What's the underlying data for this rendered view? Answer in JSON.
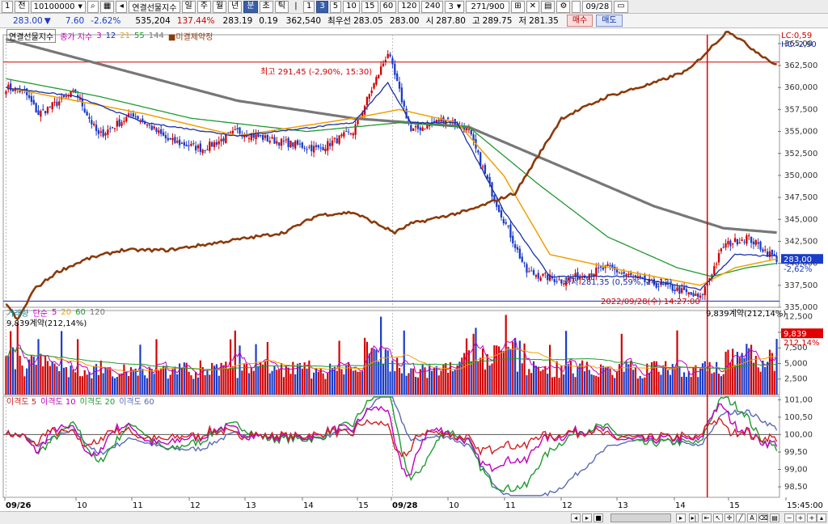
{
  "toolbar": {
    "btn1": "1",
    "btn2": "전",
    "code": "10100000",
    "index_name": "연결선물지수",
    "periods": [
      "일",
      "주",
      "월",
      "년",
      "분",
      "초",
      "틱"
    ],
    "active_period": 4,
    "minutes": [
      "1",
      "3",
      "5",
      "10",
      "15",
      "60",
      "120",
      "240"
    ],
    "active_minute": 1,
    "interval": "3",
    "count": "271/900",
    "date": "09/28"
  },
  "quote": {
    "price": "283.00",
    "arrow": "▼",
    "change": "7.60",
    "change_pct": "-2.62%",
    "volume": "535,204",
    "vol_ratio": "137.44%",
    "v1": "283.19",
    "v2": "0.19",
    "oi": "362,540",
    "bid_label": "최우선",
    "bid": "283.05",
    "ask": "283.00",
    "open_label": "시",
    "open": "287.80",
    "high_label": "고",
    "high": "289.75",
    "low_label": "저",
    "low": "281.35",
    "buy_label": "매수",
    "sell_label": "매도"
  },
  "legend_price": {
    "name": "연결선물지수",
    "ma_label": "종가 지수",
    "ma_periods": [
      "3",
      "12",
      "21",
      "55",
      "144"
    ],
    "ma_colors": [
      "#c000c0",
      "#1a2fa8",
      "#f0a000",
      "#1f9a2f",
      "#777777"
    ],
    "oi_label": "미결제약정"
  },
  "legend_volume": {
    "name": "거래량",
    "ma_label": "단순",
    "ma_periods": [
      "5",
      "20",
      "60",
      "120"
    ],
    "ma_colors": [
      "#c000c0",
      "#f0a000",
      "#1f9a2f",
      "#777777"
    ],
    "oi_value": "9,839계약(212,14%)"
  },
  "legend_disparity": {
    "items": [
      "이격도 5",
      "이격도 10",
      "이격도 20",
      "이격도 60"
    ],
    "colors": [
      "#d02020",
      "#c000c0",
      "#1f9a2f",
      "#5a6ab8"
    ]
  },
  "annotations": {
    "high": "최고 291,45 (-2,90%, 15:30)",
    "low": "최저 281,35 (0,59%, 14:12)",
    "cursor": "2022/09/28(수) 14:27:00",
    "lc": "LC:0,59",
    "hc": "HC:-2,90",
    "price_tag": "283,00",
    "price_tag_pct": "-2,62%",
    "vol_tag": "9,839",
    "vol_tag_pct": "212,14%",
    "vol_value": "9,839계약(212,14%)"
  },
  "chart_data": [
    {
      "type": "candlestick",
      "title": "연결선물지수",
      "ylim": [
        335,
        366
      ],
      "yticks": [
        "365,00",
        "362,500",
        "360,000",
        "357,500",
        "355,000",
        "352,500",
        "350,000",
        "347,500",
        "345,000",
        "342,500",
        "340,000",
        "337,500",
        "335,000"
      ],
      "ytick_values": [
        365,
        362.5,
        360,
        357.5,
        355,
        352.5,
        350,
        347.5,
        345,
        342.5,
        340,
        337.5,
        335
      ],
      "x_labels": [
        "09/26",
        "10",
        "11",
        "12",
        "13",
        "14",
        "15",
        "09/28",
        "10",
        "11",
        "12",
        "13",
        "14",
        "15",
        "15:45:00"
      ],
      "series_keypoints": {
        "price": [
          [
            0,
            360
          ],
          [
            8,
            359.5
          ],
          [
            14,
            357
          ],
          [
            30,
            359.5
          ],
          [
            40,
            354.5
          ],
          [
            55,
            357
          ],
          [
            70,
            354
          ],
          [
            85,
            353
          ],
          [
            100,
            355
          ],
          [
            115,
            354
          ],
          [
            135,
            353
          ],
          [
            150,
            355
          ],
          [
            165,
            364
          ],
          [
            175,
            355
          ],
          [
            190,
            356.5
          ],
          [
            200,
            355
          ],
          [
            210,
            348
          ],
          [
            225,
            339
          ],
          [
            240,
            338
          ],
          [
            260,
            339.5
          ],
          [
            275,
            338
          ],
          [
            290,
            337
          ],
          [
            300,
            336
          ],
          [
            310,
            342
          ],
          [
            320,
            343
          ],
          [
            333,
            340.5
          ]
        ],
        "ma12": [
          [
            0,
            360
          ],
          [
            30,
            359
          ],
          [
            60,
            356
          ],
          [
            100,
            354.5
          ],
          [
            150,
            356
          ],
          [
            165,
            360.5
          ],
          [
            175,
            356
          ],
          [
            195,
            356
          ],
          [
            215,
            346
          ],
          [
            235,
            338.5
          ],
          [
            270,
            338.5
          ],
          [
            300,
            337
          ],
          [
            315,
            341
          ],
          [
            333,
            340.8
          ]
        ],
        "ma21": [
          [
            0,
            360
          ],
          [
            30,
            358.5
          ],
          [
            60,
            357
          ],
          [
            100,
            354.5
          ],
          [
            150,
            356.5
          ],
          [
            170,
            357.5
          ],
          [
            195,
            356
          ],
          [
            215,
            350
          ],
          [
            235,
            341
          ],
          [
            270,
            339
          ],
          [
            300,
            337.5
          ],
          [
            315,
            339.5
          ],
          [
            333,
            340.5
          ]
        ],
        "ma55": [
          [
            0,
            361
          ],
          [
            40,
            359
          ],
          [
            80,
            356.5
          ],
          [
            130,
            355
          ],
          [
            170,
            356
          ],
          [
            200,
            355.5
          ],
          [
            230,
            349
          ],
          [
            260,
            343
          ],
          [
            290,
            339.5
          ],
          [
            305,
            338.5
          ],
          [
            320,
            339.5
          ],
          [
            333,
            340
          ]
        ],
        "ma144": [
          [
            0,
            365.5
          ],
          [
            50,
            362
          ],
          [
            100,
            358.5
          ],
          [
            150,
            356.5
          ],
          [
            200,
            355.5
          ],
          [
            240,
            351
          ],
          [
            280,
            346.5
          ],
          [
            310,
            344
          ],
          [
            333,
            343.5
          ]
        ],
        "open_interest": [
          [
            0,
            335.5
          ],
          [
            5,
            333.5
          ],
          [
            12,
            337
          ],
          [
            22,
            339
          ],
          [
            35,
            340.5
          ],
          [
            50,
            341.5
          ],
          [
            70,
            341.5
          ],
          [
            95,
            342.5
          ],
          [
            120,
            343.5
          ],
          [
            135,
            345.5
          ],
          [
            150,
            345.8
          ],
          [
            168,
            343.5
          ],
          [
            175,
            344.5
          ],
          [
            200,
            346
          ],
          [
            220,
            348
          ],
          [
            240,
            356.5
          ],
          [
            260,
            359
          ],
          [
            280,
            360.5
          ],
          [
            295,
            362
          ],
          [
            312,
            366.5
          ],
          [
            322,
            364.5
          ],
          [
            333,
            362.5
          ]
        ]
      }
    },
    {
      "type": "bar",
      "title": "거래량",
      "ylim": [
        0,
        13500
      ],
      "yticks": [
        "12,500",
        "10,000",
        "7,500",
        "5,000",
        "2,500"
      ],
      "ytick_values": [
        12500,
        10000,
        7500,
        5000,
        2500
      ]
    },
    {
      "type": "line",
      "title": "이격도",
      "ylim": [
        98.2,
        101.1
      ],
      "yticks": [
        "101,00",
        "100,50",
        "100,00",
        "99,50",
        "99,00",
        "98,50"
      ],
      "ytick_values": [
        101,
        100.5,
        100,
        99.5,
        99,
        98.5
      ]
    }
  ]
}
